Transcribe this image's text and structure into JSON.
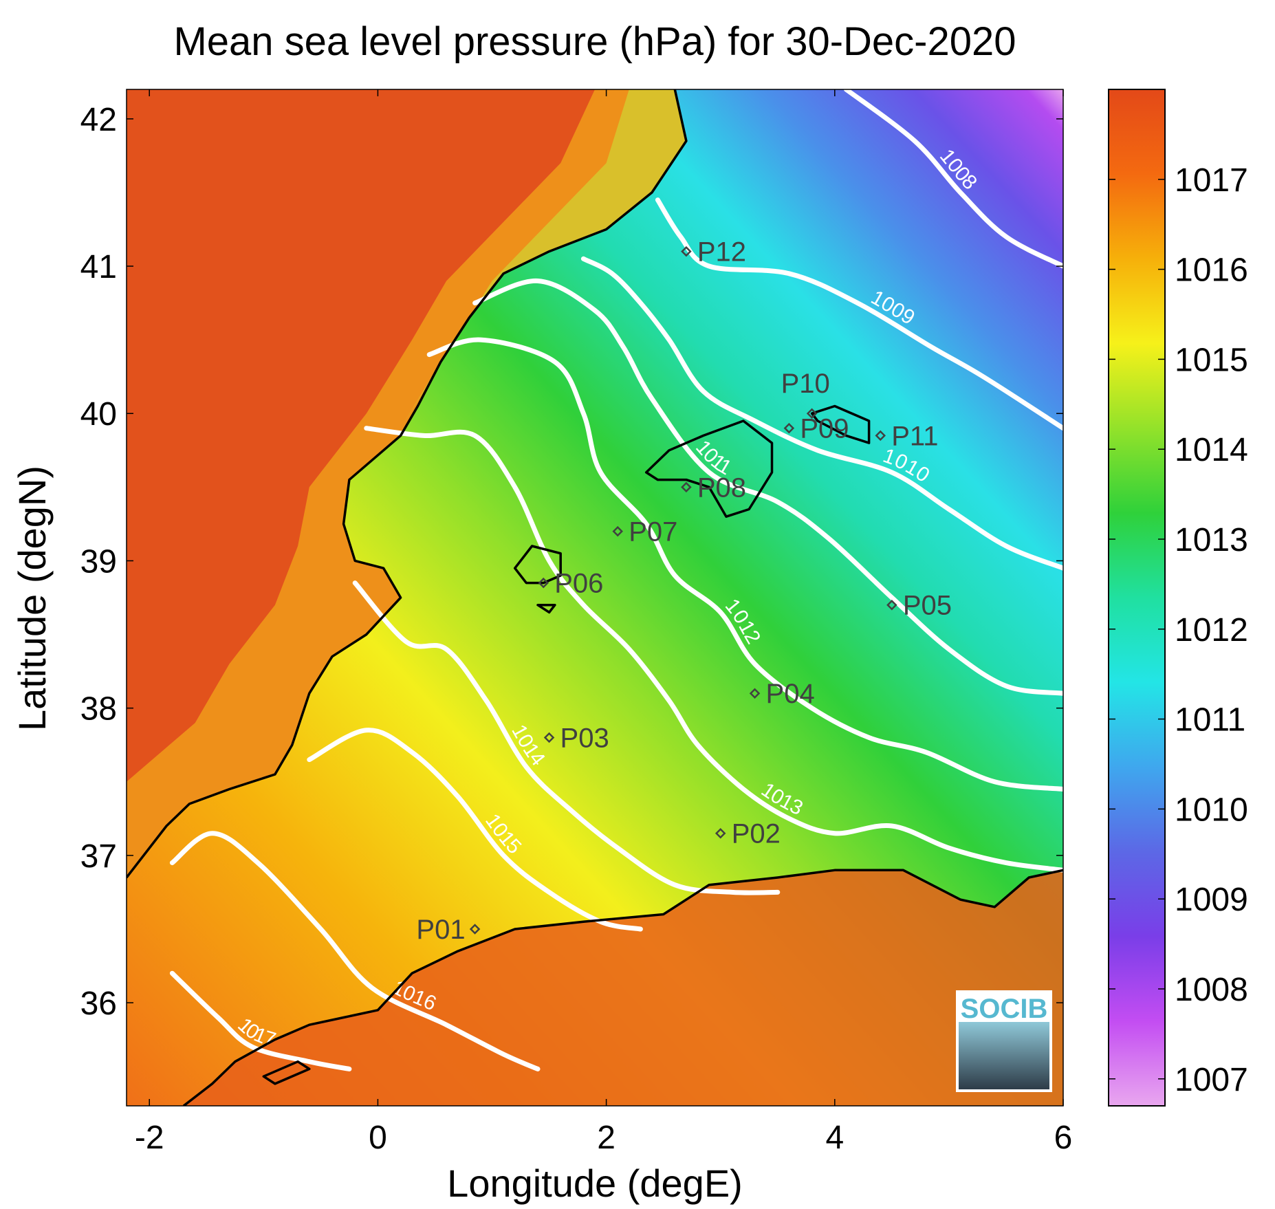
{
  "title": "Mean sea level pressure (hPa) for 30-Dec-2020",
  "chart_data": {
    "type": "heatmap",
    "title": "Mean sea level pressure (hPa) for 30-Dec-2020",
    "xlabel": "Longitude (degE)",
    "ylabel": "Latitude (degN)",
    "xlim": [
      -2.2,
      6
    ],
    "ylim": [
      35.3,
      42.2
    ],
    "xticks": [
      "-2",
      "0",
      "2",
      "4",
      "6"
    ],
    "yticks": [
      "36",
      "37",
      "38",
      "39",
      "40",
      "41",
      "42"
    ],
    "colorbar": {
      "min": 1006.7,
      "max": 1018,
      "ticks": [
        "1007",
        "1008",
        "1009",
        "1010",
        "1011",
        "1012",
        "1013",
        "1014",
        "1015",
        "1016",
        "1017"
      ],
      "colors": [
        "#e9a7ef",
        "#c34df2",
        "#7a3ee8",
        "#5c68e6",
        "#3fa7ee",
        "#23e5e6",
        "#20e0a0",
        "#2fd13a",
        "#93e22a",
        "#f6f11a",
        "#f6b00a",
        "#f46a10",
        "#e34918"
      ]
    },
    "contours": [
      {
        "level": "1008",
        "points": [
          [
            4.1,
            42.2
          ],
          [
            4.7,
            41.85
          ],
          [
            5.1,
            41.5
          ],
          [
            5.5,
            41.2
          ],
          [
            6.0,
            41.0
          ]
        ]
      },
      {
        "level": "1009",
        "points": [
          [
            2.45,
            41.45
          ],
          [
            2.65,
            41.2
          ],
          [
            2.9,
            41.0
          ],
          [
            3.6,
            40.95
          ],
          [
            4.2,
            40.75
          ],
          [
            4.85,
            40.45
          ],
          [
            5.3,
            40.25
          ],
          [
            6.0,
            39.9
          ]
        ]
      },
      {
        "level": "1010",
        "points": [
          [
            1.8,
            41.05
          ],
          [
            2.05,
            40.95
          ],
          [
            2.3,
            40.75
          ],
          [
            2.55,
            40.5
          ],
          [
            2.85,
            40.15
          ],
          [
            3.3,
            39.95
          ],
          [
            3.85,
            39.75
          ],
          [
            4.5,
            39.6
          ],
          [
            5.0,
            39.35
          ],
          [
            5.5,
            39.1
          ],
          [
            6.0,
            38.95
          ]
        ]
      },
      {
        "level": "1011",
        "points": [
          [
            0.85,
            40.75
          ],
          [
            1.4,
            40.9
          ],
          [
            1.9,
            40.7
          ],
          [
            2.15,
            40.45
          ],
          [
            2.4,
            40.1
          ],
          [
            2.9,
            39.6
          ],
          [
            3.5,
            39.4
          ],
          [
            3.95,
            39.15
          ],
          [
            4.5,
            38.75
          ],
          [
            5.0,
            38.4
          ],
          [
            5.5,
            38.15
          ],
          [
            6.0,
            38.1
          ]
        ]
      },
      {
        "level": "1012",
        "points": [
          [
            0.45,
            40.4
          ],
          [
            0.9,
            40.5
          ],
          [
            1.55,
            40.35
          ],
          [
            1.8,
            40.0
          ],
          [
            1.95,
            39.6
          ],
          [
            2.35,
            39.25
          ],
          [
            2.6,
            38.9
          ],
          [
            3.0,
            38.65
          ],
          [
            3.3,
            38.3
          ],
          [
            3.8,
            38.0
          ],
          [
            4.3,
            37.8
          ],
          [
            4.8,
            37.7
          ],
          [
            5.4,
            37.5
          ],
          [
            6.0,
            37.45
          ]
        ]
      },
      {
        "level": "1013",
        "points": [
          [
            -0.1,
            39.9
          ],
          [
            0.4,
            39.85
          ],
          [
            0.85,
            39.85
          ],
          [
            1.2,
            39.5
          ],
          [
            1.5,
            39.0
          ],
          [
            1.8,
            38.7
          ],
          [
            2.2,
            38.4
          ],
          [
            2.55,
            38.05
          ],
          [
            2.8,
            37.75
          ],
          [
            3.2,
            37.45
          ],
          [
            3.6,
            37.25
          ],
          [
            4.0,
            37.15
          ],
          [
            4.5,
            37.2
          ],
          [
            5.0,
            37.05
          ],
          [
            5.5,
            36.95
          ],
          [
            6.0,
            36.9
          ]
        ]
      },
      {
        "level": "1014",
        "points": [
          [
            -0.2,
            38.85
          ],
          [
            0.25,
            38.45
          ],
          [
            0.6,
            38.4
          ],
          [
            0.95,
            38.05
          ],
          [
            1.3,
            37.6
          ],
          [
            1.7,
            37.3
          ],
          [
            2.1,
            37.05
          ],
          [
            2.6,
            36.8
          ],
          [
            3.1,
            36.75
          ],
          [
            3.5,
            36.75
          ]
        ]
      },
      {
        "level": "1015",
        "points": [
          [
            -0.6,
            37.65
          ],
          [
            -0.1,
            37.85
          ],
          [
            0.3,
            37.7
          ],
          [
            0.7,
            37.4
          ],
          [
            1.1,
            37.0
          ],
          [
            1.5,
            36.75
          ],
          [
            1.95,
            36.55
          ],
          [
            2.3,
            36.5
          ]
        ]
      },
      {
        "level": "1016",
        "points": [
          [
            -1.8,
            36.95
          ],
          [
            -1.45,
            37.15
          ],
          [
            -1.05,
            36.95
          ],
          [
            -0.5,
            36.5
          ],
          [
            -0.05,
            36.1
          ],
          [
            0.6,
            35.85
          ],
          [
            1.1,
            35.65
          ],
          [
            1.4,
            35.55
          ]
        ]
      },
      {
        "level": "1017",
        "points": [
          [
            -1.8,
            36.2
          ],
          [
            -1.4,
            35.9
          ],
          [
            -1.1,
            35.7
          ],
          [
            -0.6,
            35.6
          ],
          [
            -0.25,
            35.55
          ]
        ]
      }
    ],
    "stations": [
      {
        "name": "P01",
        "lon": 0.85,
        "lat": 36.5
      },
      {
        "name": "P02",
        "lon": 3.0,
        "lat": 37.15
      },
      {
        "name": "P03",
        "lon": 1.5,
        "lat": 37.8
      },
      {
        "name": "P04",
        "lon": 3.3,
        "lat": 38.1
      },
      {
        "name": "P05",
        "lon": 4.5,
        "lat": 38.7
      },
      {
        "name": "P06",
        "lon": 1.45,
        "lat": 38.85
      },
      {
        "name": "P07",
        "lon": 2.1,
        "lat": 39.2
      },
      {
        "name": "P08",
        "lon": 2.7,
        "lat": 39.5
      },
      {
        "name": "P09",
        "lon": 3.6,
        "lat": 39.9
      },
      {
        "name": "P10",
        "lon": 3.8,
        "lat": 40.0
      },
      {
        "name": "P11",
        "lon": 4.4,
        "lat": 39.85
      },
      {
        "name": "P12",
        "lon": 2.7,
        "lat": 41.1
      }
    ],
    "grid": false
  },
  "logo": {
    "text": "SOCIB"
  }
}
